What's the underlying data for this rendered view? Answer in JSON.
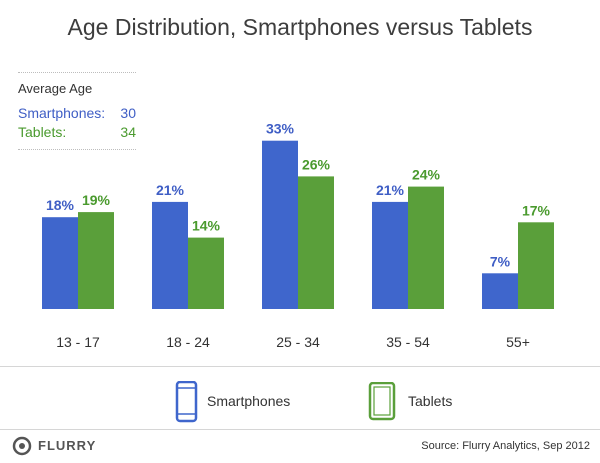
{
  "chart_data": {
    "type": "bar",
    "title": "Age Distribution, Smartphones versus Tablets",
    "categories": [
      "13 - 17",
      "18 - 24",
      "25 - 34",
      "35 - 54",
      "55+"
    ],
    "series": [
      {
        "name": "Smartphones",
        "values": [
          18,
          21,
          33,
          21,
          7
        ],
        "labels": [
          "18%",
          "21%",
          "33%",
          "21%",
          "7%"
        ],
        "color": "#3f66cc"
      },
      {
        "name": "Tablets",
        "values": [
          19,
          14,
          26,
          24,
          17
        ],
        "labels": [
          "19%",
          "14%",
          "26%",
          "24%",
          "17%"
        ],
        "color": "#5a9f3a"
      }
    ],
    "ylim": [
      0,
      36
    ],
    "grid": false,
    "legend": "bottom-center"
  },
  "average_age": {
    "heading": "Average Age",
    "rows": [
      {
        "label": "Smartphones:",
        "value": "30"
      },
      {
        "label": "Tablets:",
        "value": "34"
      }
    ]
  },
  "legend": {
    "smartphones": "Smartphones",
    "tablets": "Tablets"
  },
  "footer": {
    "logo": "FLURRY",
    "source": "Source: Flurry Analytics, Sep 2012"
  },
  "colors": {
    "smartphone_label": "#3f5ec5",
    "tablet_label": "#4a9a2e",
    "smartphone_bar": "#3f66cc",
    "tablet_bar": "#5a9f3a"
  }
}
